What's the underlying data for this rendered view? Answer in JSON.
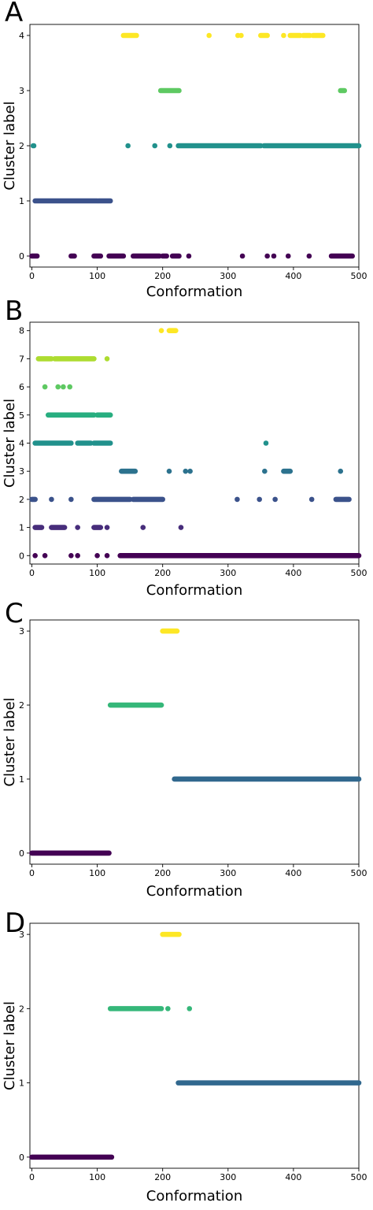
{
  "chart_data": [
    {
      "type": "scatter",
      "panel_label": "A",
      "xlabel": "Conformation",
      "ylabel": "Cluster label",
      "xlim": [
        -3,
        500
      ],
      "ylim": [
        -0.2,
        4.2
      ],
      "xticks": [
        0,
        100,
        200,
        300,
        400,
        500
      ],
      "yticks": [
        0,
        1,
        2,
        3,
        4
      ],
      "colors": {
        "0": "#440154",
        "1": "#3b528b",
        "2": "#21918c",
        "3": "#5ec962",
        "4": "#fde725"
      },
      "segments": [
        {
          "cluster": 0,
          "x": [
            0,
            8
          ]
        },
        {
          "cluster": 1,
          "x": [
            5,
            100
          ]
        },
        {
          "cluster": 2,
          "x": [
            2,
            3
          ]
        },
        {
          "cluster": 0,
          "x": [
            60,
            65
          ]
        },
        {
          "cluster": 0,
          "x": [
            95,
            105
          ]
        },
        {
          "cluster": 1,
          "x": [
            102,
            120
          ]
        },
        {
          "cluster": 0,
          "x": [
            118,
            140
          ]
        },
        {
          "cluster": 4,
          "x": [
            140,
            160
          ]
        },
        {
          "cluster": 0,
          "x": [
            155,
            195
          ]
        },
        {
          "cluster": 3,
          "x": [
            197,
            225
          ]
        },
        {
          "cluster": 0,
          "x": [
            200,
            206
          ]
        },
        {
          "cluster": 2,
          "x": [
            224,
            350
          ]
        },
        {
          "cluster": 0,
          "x": [
            215,
            225
          ]
        },
        {
          "cluster": 2,
          "x": [
            355,
            500
          ]
        },
        {
          "cluster": 0,
          "x": [
            458,
            490
          ]
        },
        {
          "cluster": 4,
          "x": [
            350,
            360
          ]
        },
        {
          "cluster": 4,
          "x": [
            395,
            410
          ]
        },
        {
          "cluster": 4,
          "x": [
            415,
            425
          ]
        },
        {
          "cluster": 4,
          "x": [
            430,
            445
          ]
        },
        {
          "cluster": 3,
          "x": [
            472,
            478
          ]
        }
      ],
      "points": [
        {
          "cluster": 2,
          "x": 147
        },
        {
          "cluster": 2,
          "x": 188
        },
        {
          "cluster": 2,
          "x": 211
        },
        {
          "cluster": 0,
          "x": 240
        },
        {
          "cluster": 0,
          "x": 322
        },
        {
          "cluster": 0,
          "x": 360
        },
        {
          "cluster": 0,
          "x": 370
        },
        {
          "cluster": 0,
          "x": 392
        },
        {
          "cluster": 0,
          "x": 424
        },
        {
          "cluster": 4,
          "x": 271
        },
        {
          "cluster": 4,
          "x": 315
        },
        {
          "cluster": 4,
          "x": 320
        },
        {
          "cluster": 4,
          "x": 385
        }
      ]
    },
    {
      "type": "scatter",
      "panel_label": "B",
      "xlabel": "Conformation",
      "ylabel": "Cluster label",
      "xlim": [
        -3,
        500
      ],
      "ylim": [
        -0.3,
        8.3
      ],
      "xticks": [
        0,
        100,
        200,
        300,
        400,
        500
      ],
      "yticks": [
        0,
        1,
        2,
        3,
        4,
        5,
        6,
        7,
        8
      ],
      "colors": {
        "0": "#440154",
        "1": "#472d7b",
        "2": "#3b528b",
        "3": "#2c728e",
        "4": "#21918c",
        "5": "#28ae80",
        "6": "#5ec962",
        "7": "#addc30",
        "8": "#fde725"
      },
      "segments": [
        {
          "cluster": 7,
          "x": [
            10,
            30
          ]
        },
        {
          "cluster": 7,
          "x": [
            35,
            95
          ]
        },
        {
          "cluster": 5,
          "x": [
            25,
            95
          ]
        },
        {
          "cluster": 5,
          "x": [
            100,
            120
          ]
        },
        {
          "cluster": 4,
          "x": [
            5,
            60
          ]
        },
        {
          "cluster": 4,
          "x": [
            70,
            90
          ]
        },
        {
          "cluster": 4,
          "x": [
            95,
            120
          ]
        },
        {
          "cluster": 1,
          "x": [
            5,
            15
          ]
        },
        {
          "cluster": 1,
          "x": [
            30,
            50
          ]
        },
        {
          "cluster": 1,
          "x": [
            95,
            105
          ]
        },
        {
          "cluster": 2,
          "x": [
            0,
            5
          ]
        },
        {
          "cluster": 2,
          "x": [
            95,
            150
          ]
        },
        {
          "cluster": 2,
          "x": [
            155,
            200
          ]
        },
        {
          "cluster": 3,
          "x": [
            137,
            158
          ]
        },
        {
          "cluster": 3,
          "x": [
            385,
            395
          ]
        },
        {
          "cluster": 0,
          "x": [
            135,
            500
          ]
        },
        {
          "cluster": 8,
          "x": [
            210,
            220
          ]
        },
        {
          "cluster": 2,
          "x": [
            465,
            485
          ]
        }
      ],
      "points": [
        {
          "cluster": 7,
          "x": 115
        },
        {
          "cluster": 6,
          "x": 20
        },
        {
          "cluster": 6,
          "x": 40
        },
        {
          "cluster": 6,
          "x": 48
        },
        {
          "cluster": 6,
          "x": 58
        },
        {
          "cluster": 2,
          "x": 30
        },
        {
          "cluster": 2,
          "x": 60
        },
        {
          "cluster": 1,
          "x": 70
        },
        {
          "cluster": 1,
          "x": 115
        },
        {
          "cluster": 1,
          "x": 170
        },
        {
          "cluster": 1,
          "x": 228
        },
        {
          "cluster": 0,
          "x": 20
        },
        {
          "cluster": 0,
          "x": 60
        },
        {
          "cluster": 0,
          "x": 70
        },
        {
          "cluster": 0,
          "x": 100
        },
        {
          "cluster": 0,
          "x": 115
        },
        {
          "cluster": 0,
          "x": 5
        },
        {
          "cluster": 8,
          "x": 198
        },
        {
          "cluster": 3,
          "x": 210
        },
        {
          "cluster": 3,
          "x": 235
        },
        {
          "cluster": 3,
          "x": 242
        },
        {
          "cluster": 3,
          "x": 356
        },
        {
          "cluster": 3,
          "x": 472
        },
        {
          "cluster": 4,
          "x": 358
        },
        {
          "cluster": 2,
          "x": 314
        },
        {
          "cluster": 2,
          "x": 348
        },
        {
          "cluster": 2,
          "x": 372
        },
        {
          "cluster": 2,
          "x": 428
        }
      ]
    },
    {
      "type": "scatter",
      "panel_label": "C",
      "xlabel": "Conformation",
      "ylabel": "Cluster label",
      "xlim": [
        -3,
        500
      ],
      "ylim": [
        -0.15,
        3.15
      ],
      "xticks": [
        0,
        100,
        200,
        300,
        400,
        500
      ],
      "yticks": [
        0,
        1,
        2,
        3
      ],
      "colors": {
        "0": "#440154",
        "1": "#31688e",
        "2": "#35b779",
        "3": "#fde725"
      },
      "segments": [
        {
          "cluster": 0,
          "x": [
            0,
            118
          ]
        },
        {
          "cluster": 2,
          "x": [
            120,
            198
          ]
        },
        {
          "cluster": 3,
          "x": [
            200,
            222
          ]
        },
        {
          "cluster": 1,
          "x": [
            218,
            500
          ]
        }
      ],
      "points": []
    },
    {
      "type": "scatter",
      "panel_label": "D",
      "xlabel": "Conformation",
      "ylabel": "Cluster label",
      "xlim": [
        -3,
        500
      ],
      "ylim": [
        -0.15,
        3.15
      ],
      "xticks": [
        0,
        100,
        200,
        300,
        400,
        500
      ],
      "yticks": [
        0,
        1,
        2,
        3
      ],
      "colors": {
        "0": "#440154",
        "1": "#31688e",
        "2": "#35b779",
        "3": "#fde725"
      },
      "segments": [
        {
          "cluster": 0,
          "x": [
            0,
            122
          ]
        },
        {
          "cluster": 2,
          "x": [
            120,
            198
          ]
        },
        {
          "cluster": 3,
          "x": [
            200,
            225
          ]
        },
        {
          "cluster": 1,
          "x": [
            224,
            500
          ]
        }
      ],
      "points": [
        {
          "cluster": 2,
          "x": 208
        },
        {
          "cluster": 2,
          "x": 241
        }
      ]
    }
  ]
}
